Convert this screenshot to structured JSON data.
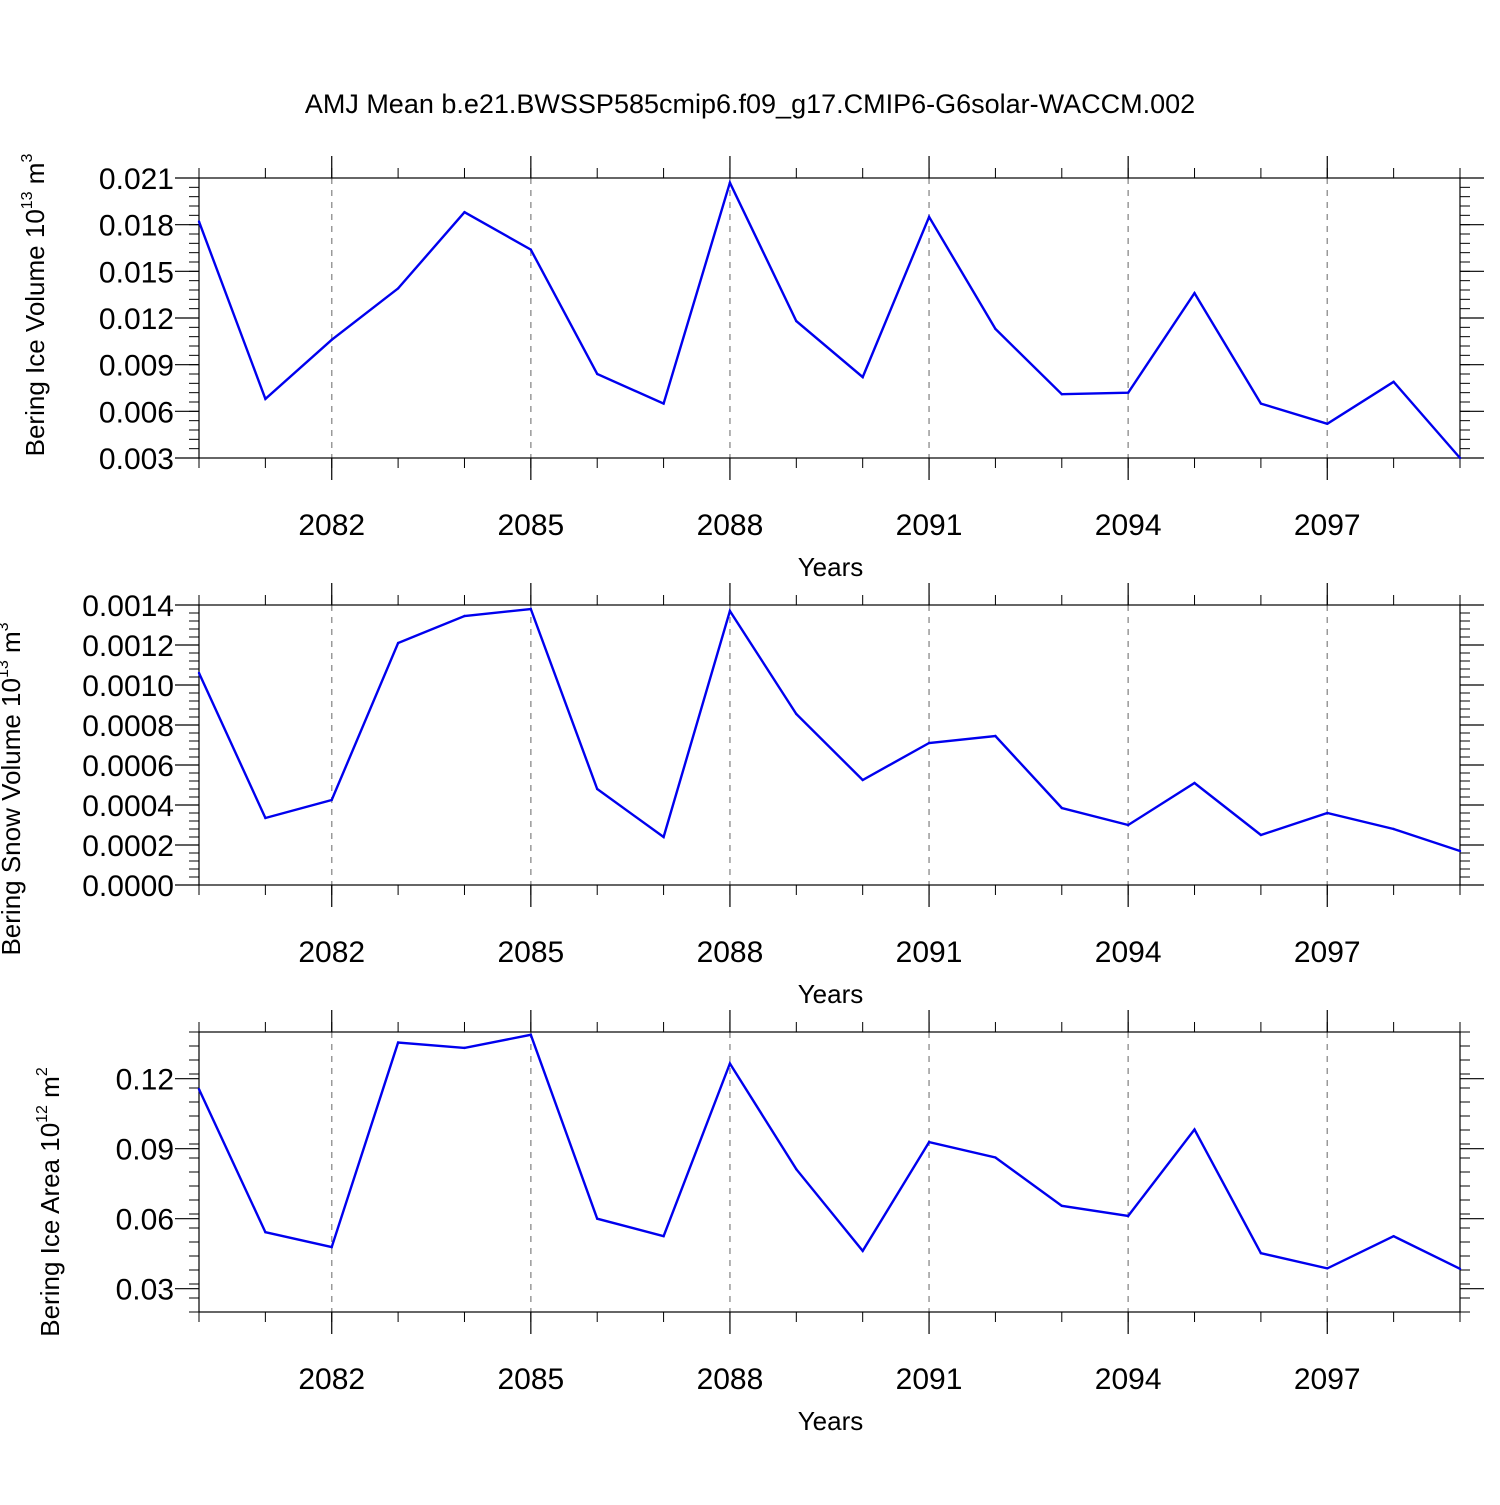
{
  "figure": {
    "title": "AMJ Mean b.e21.BWSSP585cmip6.f09_g17.CMIP6-G6solar-WACCM.002",
    "line_color": "#0000ee",
    "grid_color": "#999999"
  },
  "chart_data": [
    {
      "type": "line",
      "xlabel": "Years",
      "ylabel": {
        "text": "Bering Ice Volume 10",
        "exp": "13",
        "unit": " m",
        "unit_exp": "3"
      },
      "xlim": [
        2080,
        2099
      ],
      "ylim": [
        0.003,
        0.021
      ],
      "x_ticks": [
        2082,
        2085,
        2088,
        2091,
        2094,
        2097
      ],
      "y_ticks": [
        0.003,
        0.006,
        0.009,
        0.012,
        0.015,
        0.018,
        0.021
      ],
      "y_tick_labels": [
        "0.003",
        "0.006",
        "0.009",
        "0.012",
        "0.015",
        "0.018",
        "0.021"
      ],
      "grid": "vertical-dashed",
      "series": [
        {
          "x": [
            2080,
            2081,
            2082,
            2083,
            2084,
            2085,
            2086,
            2087,
            2088,
            2089,
            2090,
            2091,
            2092,
            2093,
            2094,
            2095,
            2096,
            2097,
            2098,
            2099
          ],
          "values": [
            0.0182,
            0.0068,
            0.0106,
            0.0139,
            0.0188,
            0.0164,
            0.0084,
            0.0065,
            0.0207,
            0.0118,
            0.0082,
            0.0185,
            0.0113,
            0.0071,
            0.0072,
            0.0136,
            0.0065,
            0.0052,
            0.0079,
            0.003
          ]
        }
      ]
    },
    {
      "type": "line",
      "xlabel": "Years",
      "ylabel": {
        "text": "Bering Snow Volume 10",
        "exp": "13",
        "unit": " m",
        "unit_exp": "3"
      },
      "xlim": [
        2080,
        2099
      ],
      "ylim": [
        0.0,
        0.0014
      ],
      "x_ticks": [
        2082,
        2085,
        2088,
        2091,
        2094,
        2097
      ],
      "y_ticks": [
        0.0,
        0.0002,
        0.0004,
        0.0006,
        0.0008,
        0.001,
        0.0012,
        0.0014
      ],
      "y_tick_labels": [
        "0.0000",
        "0.0002",
        "0.0004",
        "0.0006",
        "0.0008",
        "0.0010",
        "0.0012",
        "0.0014"
      ],
      "grid": "vertical-dashed",
      "series": [
        {
          "x": [
            2080,
            2081,
            2082,
            2083,
            2084,
            2085,
            2086,
            2087,
            2088,
            2089,
            2090,
            2091,
            2092,
            2093,
            2094,
            2095,
            2096,
            2097,
            2098,
            2099
          ],
          "values": [
            0.00106,
            0.000335,
            0.000425,
            0.00121,
            0.001345,
            0.00138,
            0.00048,
            0.00024,
            0.00137,
            0.000855,
            0.000525,
            0.00071,
            0.000745,
            0.000385,
            0.0003,
            0.00051,
            0.00025,
            0.00036,
            0.00028,
            0.00017
          ]
        }
      ]
    },
    {
      "type": "line",
      "xlabel": "Years",
      "ylabel": {
        "text": "Bering Ice Area 10",
        "exp": "12",
        "unit": " m",
        "unit_exp": "2"
      },
      "xlim": [
        2080,
        2099
      ],
      "ylim": [
        0.02,
        0.14
      ],
      "x_ticks": [
        2082,
        2085,
        2088,
        2091,
        2094,
        2097
      ],
      "y_ticks": [
        0.03,
        0.06,
        0.09,
        0.12
      ],
      "y_tick_labels": [
        "0.03",
        "0.06",
        "0.09",
        "0.12"
      ],
      "grid": "vertical-dashed",
      "series": [
        {
          "x": [
            2080,
            2081,
            2082,
            2083,
            2084,
            2085,
            2086,
            2087,
            2088,
            2089,
            2090,
            2091,
            2092,
            2093,
            2094,
            2095,
            2096,
            2097,
            2098,
            2099
          ],
          "values": [
            0.1155,
            0.0542,
            0.0478,
            0.1355,
            0.1332,
            0.1388,
            0.06,
            0.0525,
            0.1265,
            0.0812,
            0.0462,
            0.0928,
            0.0862,
            0.0655,
            0.0612,
            0.0982,
            0.0452,
            0.0387,
            0.0525,
            0.0385
          ]
        }
      ]
    }
  ]
}
